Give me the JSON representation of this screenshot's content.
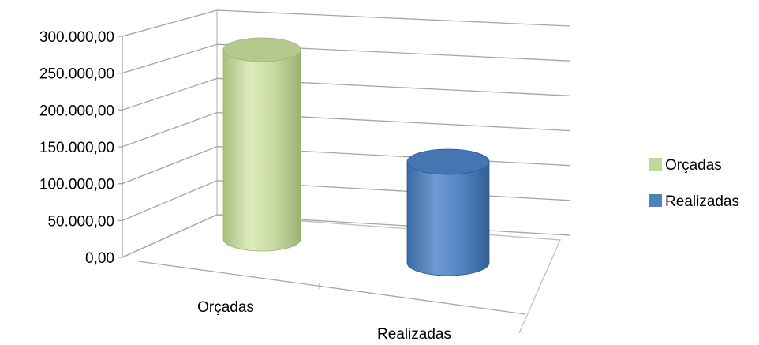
{
  "chart_data": {
    "type": "bar",
    "style": "3d-cylinder",
    "categories": [
      "Orçadas",
      "Realizadas"
    ],
    "values": [
      270000,
      135000
    ],
    "colors": [
      "#C3D69B",
      "#4F81BD"
    ],
    "ylim": [
      0,
      300000
    ],
    "y_ticks": [
      "0,00",
      "50.000,00",
      "100.000,00",
      "150.000,00",
      "200.000,00",
      "250.000,00",
      "300.000,00"
    ],
    "legend": {
      "position": "right",
      "items": [
        "Orçadas",
        "Realizadas"
      ]
    },
    "grid": true,
    "title": "",
    "xlabel": "",
    "ylabel": ""
  }
}
